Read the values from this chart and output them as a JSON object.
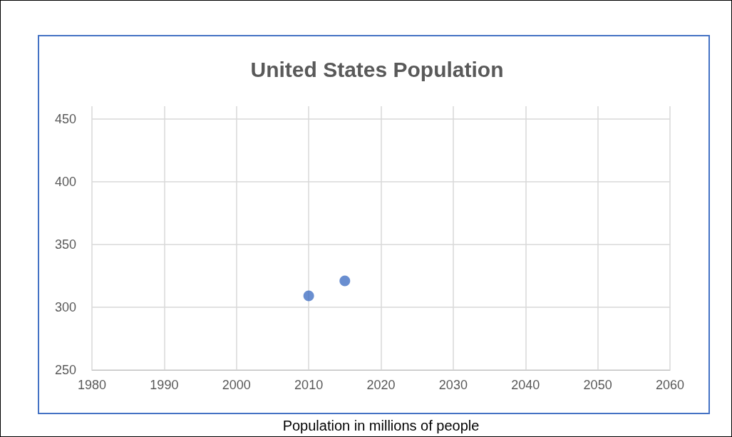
{
  "chart_data": {
    "type": "scatter",
    "title": "United States Population",
    "xlabel": "Population in millions of people",
    "x": [
      2010,
      2015
    ],
    "series": [
      {
        "color": "#4472c4",
        "values": [
          309,
          321
        ]
      }
    ],
    "xlim": [
      1980,
      2060
    ],
    "xticks": [
      1980,
      1990,
      2000,
      2010,
      2020,
      2030,
      2040,
      2050,
      2060
    ],
    "ylim": [
      250,
      460
    ],
    "yticks": [
      250,
      300,
      350,
      400,
      450
    ],
    "grid": true,
    "marker": "circle"
  }
}
